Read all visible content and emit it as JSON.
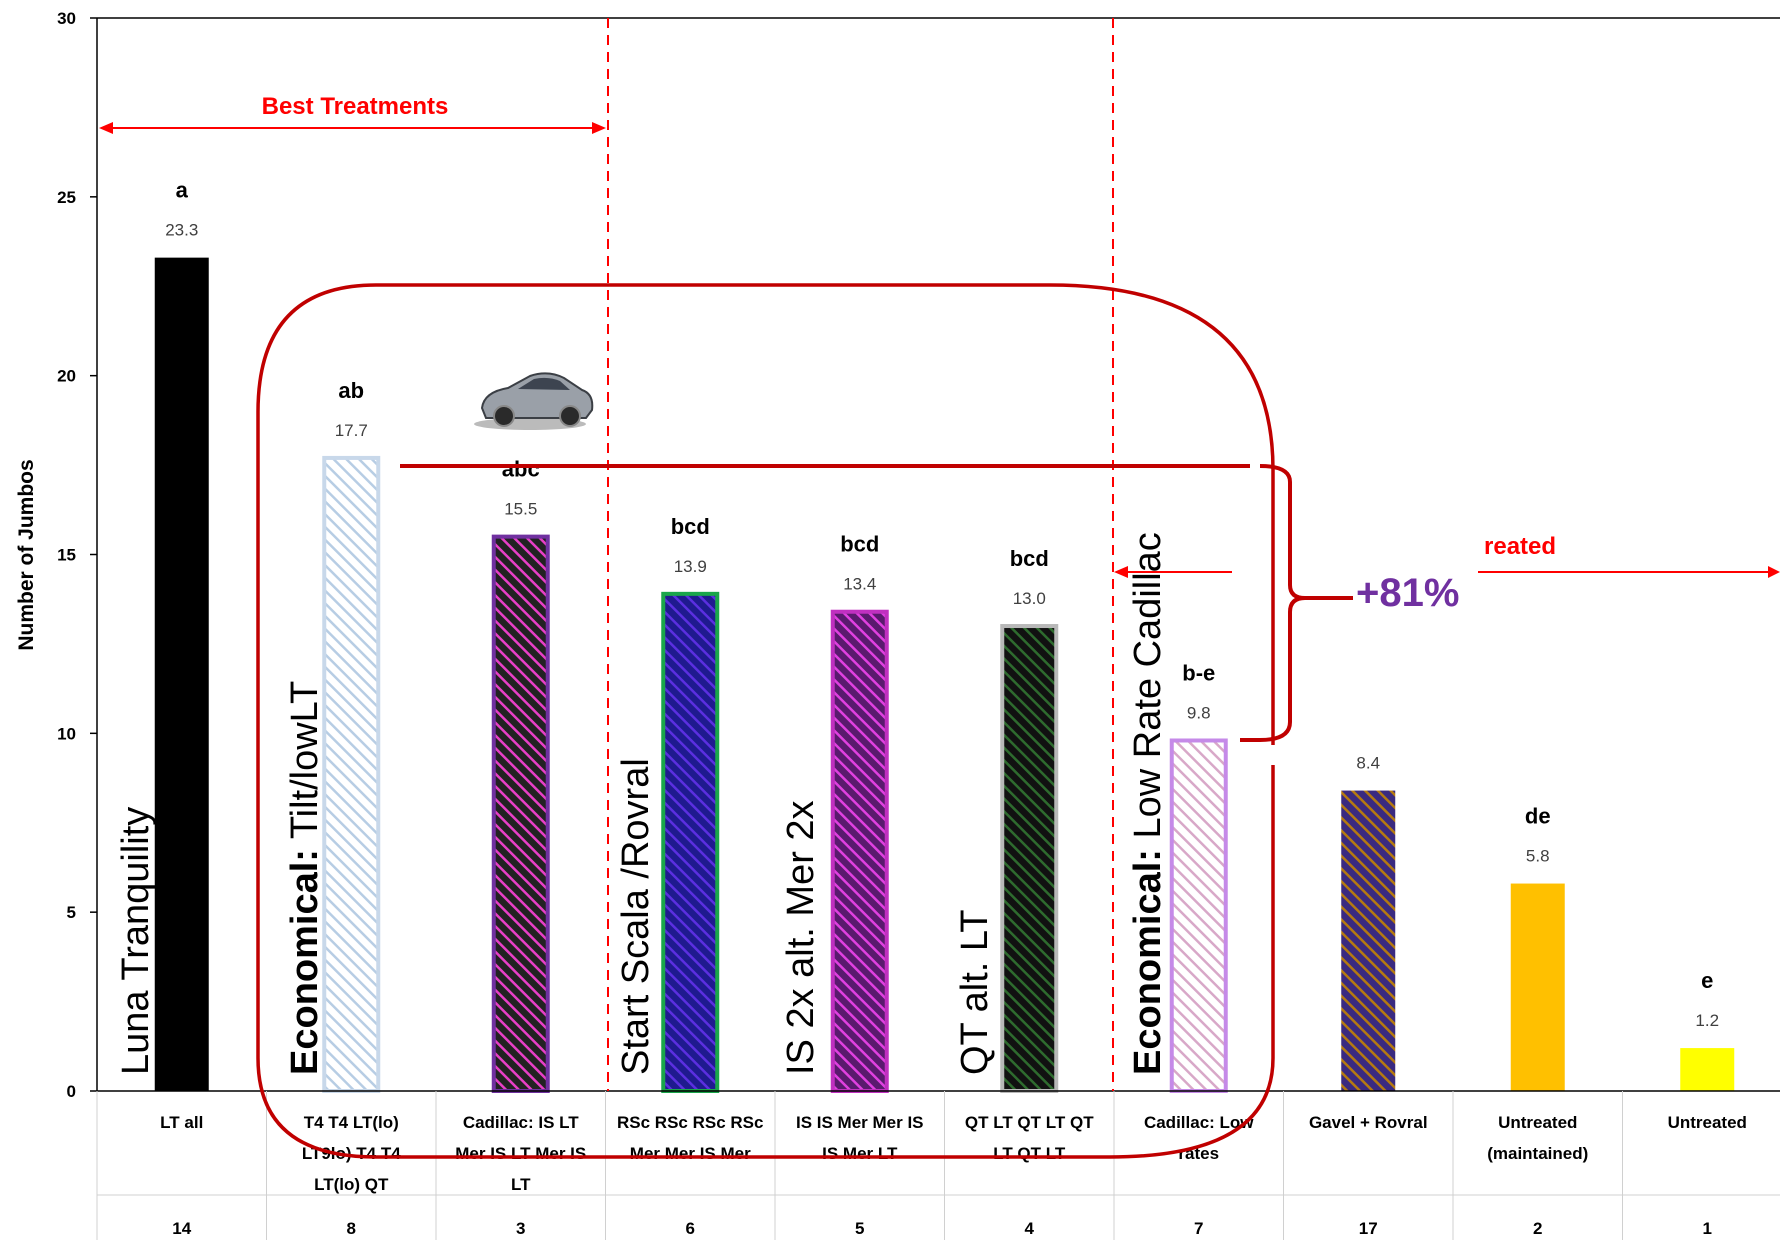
{
  "chart_data": {
    "type": "bar",
    "ylabel": "Number of Jumbos",
    "ylim": [
      0,
      30
    ],
    "yticks": [
      0,
      5,
      10,
      15,
      20,
      25,
      30
    ],
    "grid": false,
    "bars": [
      {
        "category": "LT all",
        "replicate": "14",
        "value": 23.3,
        "value_label": "23.3",
        "letters": "a",
        "label": "Luna Tranquility",
        "label_bold": "",
        "fill": "#000000",
        "hatch": "",
        "border": "#000000"
      },
      {
        "category": "T4 T4 LT(lo) LT9lo) T4 T4 LT(lo) QT",
        "replicate": "8",
        "value": 17.7,
        "value_label": "17.7",
        "letters": "ab",
        "label": " Tilt/lowLT",
        "label_bold": "Economical:",
        "fill": "#ffffff",
        "hatch": "#b7cde4",
        "border": "#c8d8ea"
      },
      {
        "category": "Cadillac: IS LT Mer IS LT Mer IS LT",
        "replicate": "3",
        "value": 15.5,
        "value_label": "15.5",
        "letters": "abc",
        "label": "",
        "label_bold": "",
        "fill": "#222222",
        "hatch": "#e83fc7",
        "border": "#7030a0"
      },
      {
        "category": "RSc RSc RSc RSc Mer Mer IS Mer",
        "replicate": "6",
        "value": 13.9,
        "value_label": "13.9",
        "letters": "bcd",
        "label": "Start Scala /Rovral",
        "label_bold": "",
        "fill": "#1f1a8f",
        "hatch": "#5b2fe0",
        "border": "#1aa64a"
      },
      {
        "category": "IS IS Mer Mer IS IS Mer LT",
        "replicate": "5",
        "value": 13.4,
        "value_label": "13.4",
        "letters": "bcd",
        "label": "IS 2x alt. Mer 2x",
        "label_bold": "",
        "fill": "#5a1a6e",
        "hatch": "#e040e0",
        "border": "#c030c0"
      },
      {
        "category": "QT LT QT LT QT LT QT LT",
        "replicate": "4",
        "value": 13.0,
        "value_label": "13.0",
        "letters": "bcd",
        "label": "QT alt. LT",
        "label_bold": "",
        "fill": "#111111",
        "hatch": "#2e6b2e",
        "border": "#b8b8b8"
      },
      {
        "category": "Cadillac: Low rates",
        "replicate": "7",
        "value": 9.8,
        "value_label": "9.8",
        "letters": "b-e",
        "label": " Low Rate Cadillac",
        "label_bold": "Economical:",
        "fill": "#ffffff",
        "hatch": "#d8a8c8",
        "border": "#c58ae8"
      },
      {
        "category": "Gavel + Rovral",
        "replicate": "17",
        "value": 8.4,
        "value_label": "8.4",
        "letters": "",
        "label": "",
        "label_bold": "",
        "fill": "#3a2a80",
        "hatch": "#b57a10",
        "border": "#3a2a80"
      },
      {
        "category": "Untreated (maintained)",
        "replicate": "2",
        "value": 5.8,
        "value_label": "5.8",
        "letters": "de",
        "label": "",
        "label_bold": "",
        "fill": "#ffc000",
        "hatch": "",
        "border": "#ffc000"
      },
      {
        "category": "Untreated",
        "replicate": "1",
        "value": 1.2,
        "value_label": "1.2",
        "letters": "e",
        "label": "",
        "label_bold": "",
        "fill": "#ffff00",
        "hatch": "",
        "border": "#ffff00"
      }
    ],
    "annotations": {
      "best_treatments": "Best Treatments",
      "partial_label": "reated",
      "percent_increase": "+81%"
    },
    "colors": {
      "dashed_line": "#ff0000",
      "rounded_box": "#c00000",
      "bracket": "#c00000",
      "percent": "#7030a0"
    }
  }
}
